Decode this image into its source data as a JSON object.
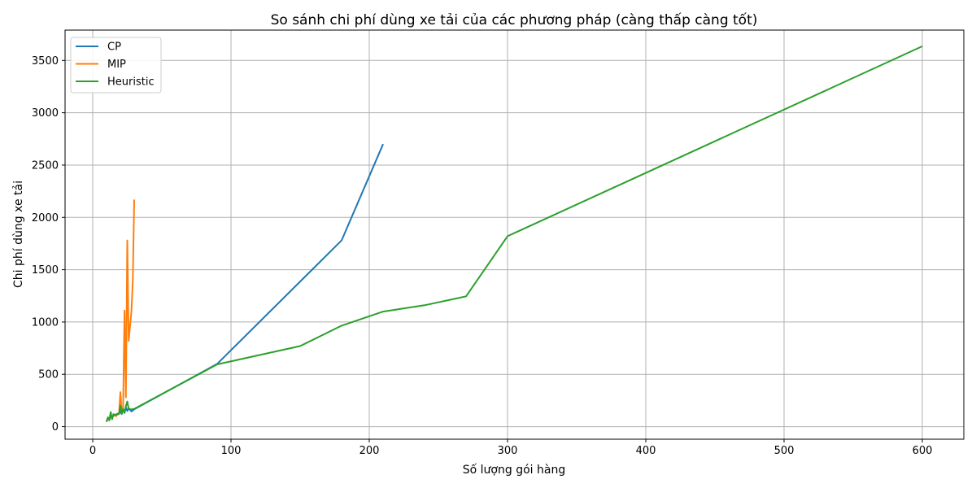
{
  "chart_data": {
    "type": "line",
    "title": "So sánh chi phí dùng xe tải của các phương pháp (càng thấp càng tốt)",
    "xlabel": "Số lượng gói hàng",
    "ylabel": "Chi phí dùng xe tải",
    "xlim": [
      -20,
      630
    ],
    "ylim": [
      -120,
      3790
    ],
    "xticks": [
      0,
      100,
      200,
      300,
      400,
      500,
      600
    ],
    "yticks": [
      0,
      500,
      1000,
      1500,
      2000,
      2500,
      3000,
      3500
    ],
    "grid": true,
    "legend_position": "top-left",
    "series": [
      {
        "name": "CP",
        "color": "#1f77b4",
        "points": [
          [
            10,
            55
          ],
          [
            11,
            75
          ],
          [
            12,
            65
          ],
          [
            13,
            100
          ],
          [
            14,
            80
          ],
          [
            15,
            110
          ],
          [
            16,
            105
          ],
          [
            17,
            120
          ],
          [
            18,
            115
          ],
          [
            19,
            130
          ],
          [
            20,
            140
          ],
          [
            21,
            120
          ],
          [
            22,
            165
          ],
          [
            23,
            130
          ],
          [
            24,
            185
          ],
          [
            25,
            150
          ],
          [
            26,
            175
          ],
          [
            28,
            145
          ],
          [
            30,
            165
          ],
          [
            90,
            600
          ],
          [
            180,
            1780
          ],
          [
            210,
            2700
          ]
        ]
      },
      {
        "name": "MIP",
        "color": "#ff7f0e",
        "points": [
          [
            10,
            60
          ],
          [
            11,
            80
          ],
          [
            12,
            70
          ],
          [
            13,
            95
          ],
          [
            14,
            85
          ],
          [
            15,
            105
          ],
          [
            16,
            110
          ],
          [
            17,
            100
          ],
          [
            18,
            125
          ],
          [
            19,
            120
          ],
          [
            20,
            330
          ],
          [
            21,
            130
          ],
          [
            22,
            190
          ],
          [
            23,
            1110
          ],
          [
            24,
            280
          ],
          [
            25,
            1780
          ],
          [
            26,
            820
          ],
          [
            28,
            1100
          ],
          [
            29,
            1400
          ],
          [
            30,
            2170
          ]
        ]
      },
      {
        "name": "Heuristic",
        "color": "#2ca02c",
        "points": [
          [
            10,
            45
          ],
          [
            11,
            90
          ],
          [
            12,
            60
          ],
          [
            13,
            140
          ],
          [
            14,
            70
          ],
          [
            15,
            120
          ],
          [
            16,
            110
          ],
          [
            17,
            115
          ],
          [
            18,
            125
          ],
          [
            19,
            120
          ],
          [
            20,
            200
          ],
          [
            21,
            125
          ],
          [
            22,
            170
          ],
          [
            23,
            135
          ],
          [
            24,
            195
          ],
          [
            25,
            240
          ],
          [
            26,
            170
          ],
          [
            28,
            165
          ],
          [
            30,
            170
          ],
          [
            90,
            595
          ],
          [
            150,
            770
          ],
          [
            180,
            965
          ],
          [
            210,
            1100
          ],
          [
            240,
            1160
          ],
          [
            270,
            1245
          ],
          [
            300,
            1820
          ],
          [
            600,
            3635
          ]
        ]
      }
    ]
  }
}
